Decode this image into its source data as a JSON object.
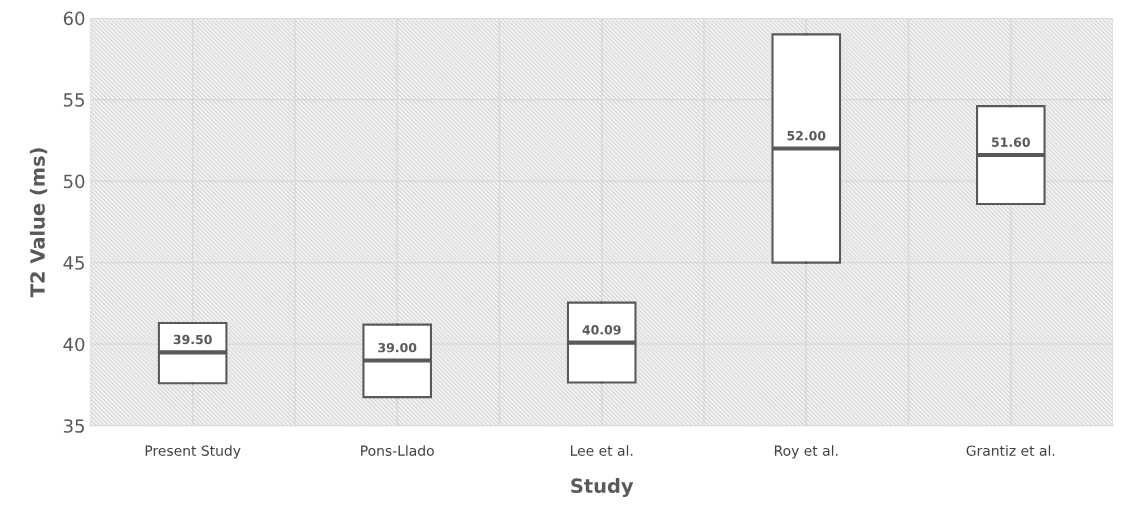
{
  "chart_data": {
    "type": "box",
    "xlabel": "Study",
    "ylabel": "T2 Value (ms)",
    "categories": [
      "Present Study",
      "Pons-Llado",
      "Lee et al.",
      "Roy et al.",
      "Grantiz et al."
    ],
    "boxes": [
      {
        "low": 37.6,
        "q1": 37.6,
        "median": 39.5,
        "q3": 41.3,
        "high": 41.3
      },
      {
        "low": 36.75,
        "q1": 36.75,
        "median": 39.0,
        "q3": 41.2,
        "high": 41.2
      },
      {
        "low": 37.65,
        "q1": 37.65,
        "median": 40.09,
        "q3": 42.55,
        "high": 42.55
      },
      {
        "low": 45.0,
        "q1": 45.0,
        "median": 52.0,
        "q3": 59.0,
        "high": 59.0
      },
      {
        "low": 48.6,
        "q1": 48.6,
        "median": 51.6,
        "q3": 54.6,
        "high": 54.6
      }
    ],
    "value_labels": [
      "39.50",
      "39.00",
      "40.09",
      "52.00",
      "51.60"
    ],
    "color": "#595959",
    "ylim": [
      35,
      60
    ],
    "yticks": [
      35,
      40,
      45,
      50,
      55,
      60
    ],
    "grid": true
  }
}
